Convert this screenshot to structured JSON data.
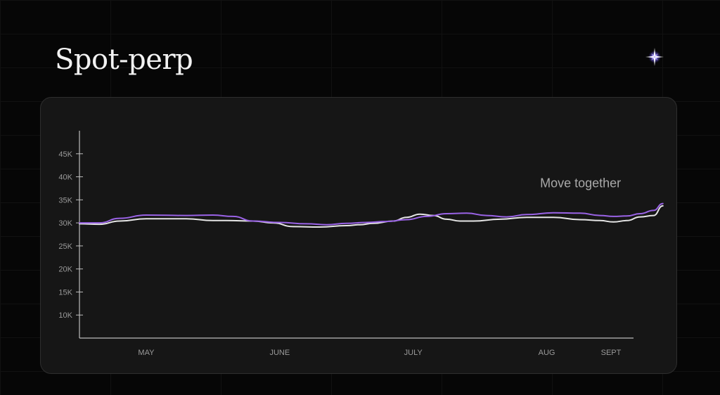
{
  "header": {
    "title": "Spot-perp",
    "sparkle_icon": "sparkle-icon"
  },
  "colors": {
    "background": "#060606",
    "card": "#161616",
    "series_spot": "#e6e6e6",
    "series_perp": "#9a63e6",
    "axis": "#bdbdbd"
  },
  "chart_data": {
    "type": "line",
    "title": "",
    "xlabel": "",
    "ylabel": "",
    "ylim": [
      5000,
      50000
    ],
    "yticks": [
      10000,
      15000,
      20000,
      25000,
      30000,
      35000,
      40000,
      45000
    ],
    "ytick_labels": [
      "10K",
      "15K",
      "20K",
      "25K",
      "30K",
      "35K",
      "40K",
      "45K"
    ],
    "xlim": [
      0,
      4.15
    ],
    "xticks": [
      0.5,
      1.5,
      2.5,
      3.5,
      4.5
    ],
    "xtick_labels": [
      "MAY",
      "JUNE",
      "JULY",
      "AUG",
      "SEPT"
    ],
    "grid": false,
    "annotations": [
      {
        "text": "Move together",
        "x": 3.45,
        "y": 37700
      }
    ],
    "series": [
      {
        "color": "#e6e6e6",
        "x": [
          0.0,
          0.15,
          0.3,
          0.5,
          0.8,
          1.0,
          1.1,
          1.3,
          1.45,
          1.6,
          1.8,
          2.0,
          2.1,
          2.2,
          2.35,
          2.45,
          2.55,
          2.65,
          2.75,
          2.85,
          2.95,
          3.15,
          3.35,
          3.55,
          3.75,
          3.9,
          4.0,
          4.1,
          4.2,
          4.3,
          4.37
        ],
        "y": [
          29800,
          29700,
          30400,
          30900,
          30900,
          30500,
          30500,
          30400,
          30000,
          29200,
          29100,
          29400,
          29600,
          29900,
          30400,
          31200,
          31900,
          31600,
          30800,
          30400,
          30400,
          30800,
          31200,
          31200,
          30700,
          30500,
          30200,
          30500,
          31300,
          31600,
          33700
        ]
      },
      {
        "color": "#9a63e6",
        "x": [
          0.0,
          0.15,
          0.3,
          0.5,
          0.8,
          1.0,
          1.15,
          1.3,
          1.5,
          1.7,
          1.85,
          2.0,
          2.15,
          2.3,
          2.45,
          2.6,
          2.75,
          2.9,
          3.05,
          3.2,
          3.35,
          3.55,
          3.75,
          3.9,
          4.0,
          4.1,
          4.2,
          4.3,
          4.37
        ],
        "y": [
          30000,
          30000,
          31000,
          31700,
          31600,
          31700,
          31400,
          30400,
          30100,
          29800,
          29600,
          29900,
          30100,
          30300,
          30700,
          31400,
          32000,
          32100,
          31600,
          31300,
          31800,
          32200,
          32100,
          31600,
          31400,
          31500,
          32000,
          32700,
          34200
        ]
      }
    ]
  }
}
